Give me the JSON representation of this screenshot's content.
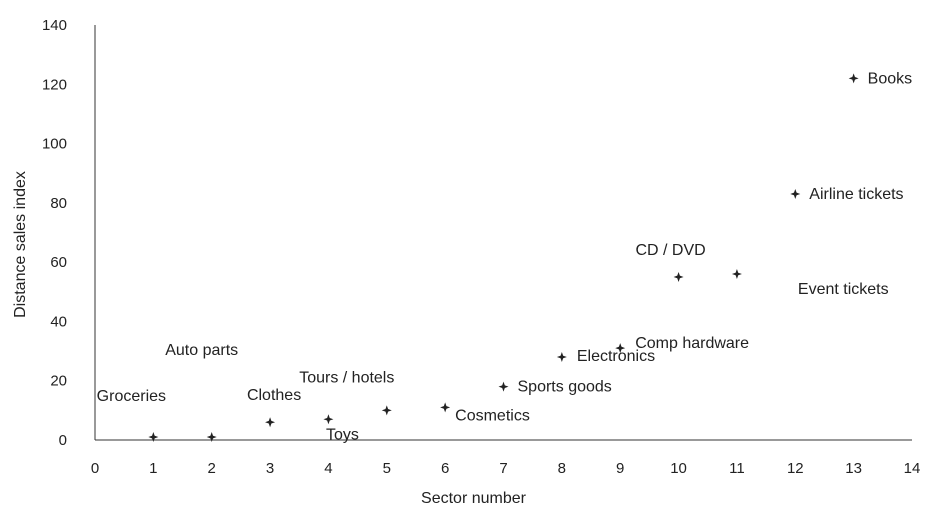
{
  "chart_data": {
    "type": "scatter",
    "title": "",
    "xlabel": "Sector number",
    "ylabel": "Distance sales index",
    "xlim": [
      0,
      14
    ],
    "ylim": [
      0,
      140
    ],
    "x_ticks": [
      0,
      1,
      2,
      3,
      4,
      5,
      6,
      7,
      8,
      9,
      10,
      11,
      12,
      13,
      14
    ],
    "y_ticks": [
      0,
      20,
      40,
      60,
      80,
      100,
      120,
      140
    ],
    "grid": false,
    "legend": "none",
    "marker": "plus",
    "points": [
      {
        "x": 1,
        "y": 1,
        "label": "Groceries"
      },
      {
        "x": 2,
        "y": 1,
        "label": "Auto parts"
      },
      {
        "x": 3,
        "y": 6,
        "label": "Clothes"
      },
      {
        "x": 4,
        "y": 7,
        "label": "Toys"
      },
      {
        "x": 5,
        "y": 10,
        "label": "Tours / hotels"
      },
      {
        "x": 6,
        "y": 11,
        "label": "Cosmetics"
      },
      {
        "x": 7,
        "y": 18,
        "label": "Sports goods"
      },
      {
        "x": 8,
        "y": 28,
        "label": "Electronics"
      },
      {
        "x": 9,
        "y": 31,
        "label": "Comp hardware"
      },
      {
        "x": 10,
        "y": 55,
        "label": "CD / DVD"
      },
      {
        "x": 11,
        "y": 56,
        "label": "Event tickets"
      },
      {
        "x": 12,
        "y": 83,
        "label": "Airline tickets"
      },
      {
        "x": 13,
        "y": 122,
        "label": "Books"
      }
    ]
  }
}
